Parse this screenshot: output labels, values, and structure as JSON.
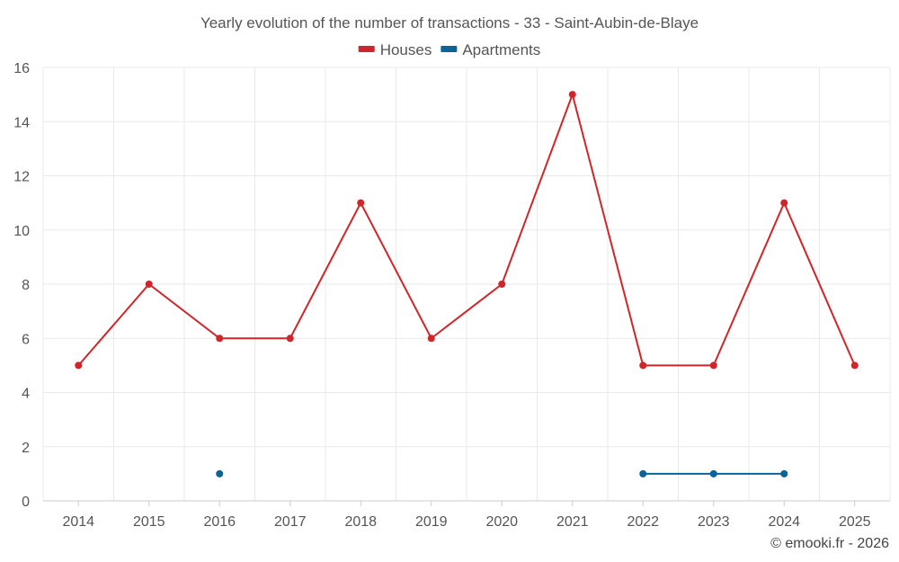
{
  "chart_data": {
    "type": "line",
    "title": "Yearly evolution of the number of transactions - 33 - Saint-Aubin-de-Blaye",
    "categories": [
      "2014",
      "2015",
      "2016",
      "2017",
      "2018",
      "2019",
      "2020",
      "2021",
      "2022",
      "2023",
      "2024",
      "2025"
    ],
    "yticks": [
      "0",
      "2",
      "4",
      "6",
      "8",
      "10",
      "12",
      "14",
      "16"
    ],
    "ylim": [
      0,
      16
    ],
    "grid": true,
    "legend_position": "top",
    "series": [
      {
        "name": "Houses",
        "color": "#d0262a",
        "values": [
          5,
          8,
          6,
          6,
          11,
          6,
          8,
          15,
          5,
          5,
          11,
          5
        ]
      },
      {
        "name": "Apartments",
        "color": "#0a6399",
        "values": [
          null,
          null,
          1,
          null,
          null,
          null,
          null,
          null,
          1,
          1,
          1,
          null
        ]
      }
    ],
    "credit": "© emooki.fr - 2026"
  }
}
